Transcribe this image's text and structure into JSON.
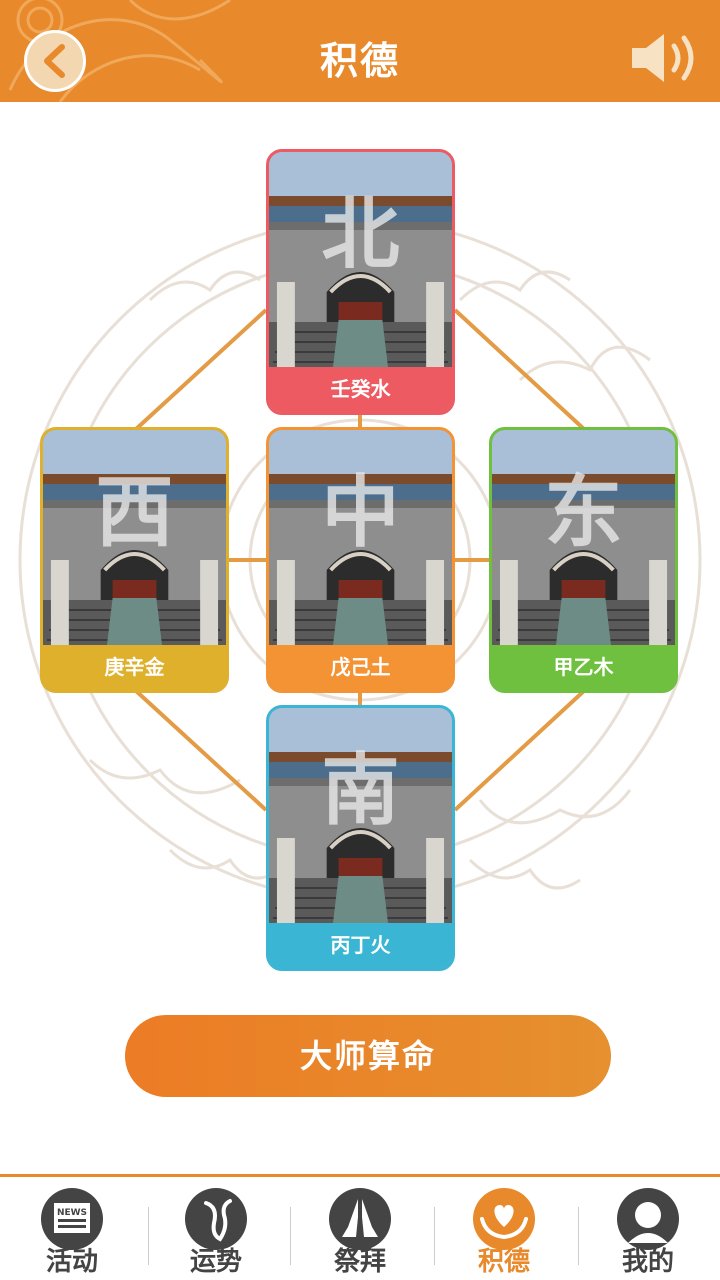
{
  "header": {
    "title": "积德"
  },
  "directions": {
    "north": {
      "glyph": "北",
      "label": "壬癸水",
      "color": "#ee5a62"
    },
    "center": {
      "glyph": "中",
      "label": "戊己土",
      "color": "#f39333"
    },
    "west": {
      "glyph": "西",
      "label": "庚辛金",
      "color": "#dfb02c"
    },
    "east": {
      "glyph": "东",
      "label": "甲乙木",
      "color": "#6fc03f"
    },
    "south": {
      "glyph": "南",
      "label": "丙丁火",
      "color": "#3ab6d4"
    }
  },
  "main": {
    "master_button": "大师算命"
  },
  "nav": {
    "items": [
      {
        "label": "活动",
        "icon": "news-icon",
        "badge": "NEWS"
      },
      {
        "label": "运势",
        "icon": "fortune-icon"
      },
      {
        "label": "祭拜",
        "icon": "pray-hands-icon"
      },
      {
        "label": "积德",
        "icon": "heart-hands-icon"
      },
      {
        "label": "我的",
        "icon": "user-icon"
      }
    ],
    "active_index": 3
  },
  "colors": {
    "brand": "#e8892b",
    "nav_text": "#444444"
  }
}
